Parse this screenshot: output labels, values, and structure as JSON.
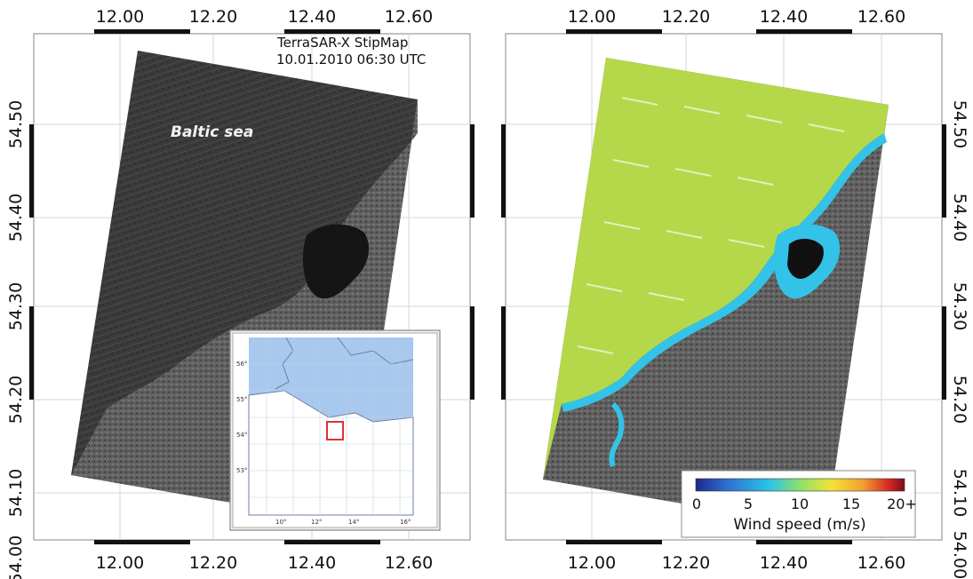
{
  "left_map": {
    "top_ticks": [
      "12.00",
      "12.20",
      "12.40",
      "12.60"
    ],
    "bottom_ticks": [
      "12.00",
      "12.20",
      "12.40",
      "12.60"
    ],
    "left_ticks": [
      "54.50",
      "54.40",
      "54.30",
      "54.20",
      "54.10",
      "54.00"
    ],
    "title_line1": "TerraSAR-X StipMap",
    "title_line2": "10.01.2010 06:30 UTC",
    "sea_label": "Baltic sea",
    "inset": {
      "lat_labels": [
        "56°",
        "55°",
        "54°",
        "53°"
      ],
      "lon_labels": [
        "10°",
        "12°",
        "14°",
        "16°"
      ]
    }
  },
  "right_map": {
    "top_ticks": [
      "12.00",
      "12.20",
      "12.40",
      "12.60"
    ],
    "bottom_ticks": [
      "12.00",
      "12.20",
      "12.40",
      "12.60"
    ],
    "right_ticks": [
      "54.50",
      "54.40",
      "54.30",
      "54.20",
      "54.10",
      "54.00"
    ],
    "colorbar": {
      "ticks": [
        "0",
        "5",
        "10",
        "15",
        "20+"
      ],
      "title": "Wind speed (m/s)",
      "colors": [
        "#1c2a8c",
        "#2f6fd0",
        "#28c4e8",
        "#8ee06c",
        "#f2e234",
        "#f0a030",
        "#d82a24",
        "#7a0e1a"
      ]
    }
  },
  "colors": {
    "sar_dark": "#2f2f2f",
    "sar_land": "#5a5a5a",
    "wind_field": "#b4d84a",
    "water_cyan": "#33c3e8",
    "inset_sea": "#a8c8ee",
    "inset_box": "#e0303a"
  }
}
